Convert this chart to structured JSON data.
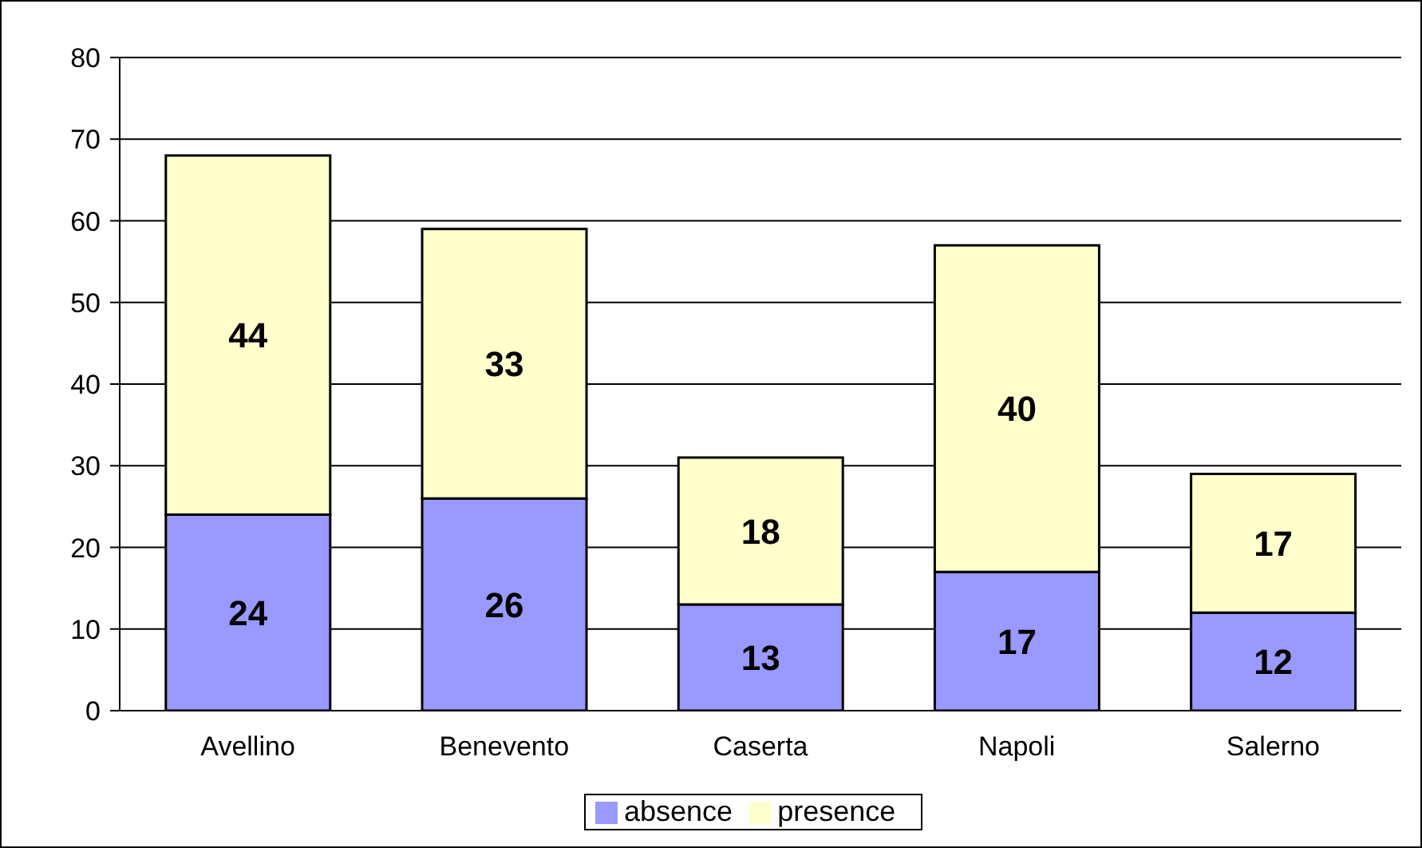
{
  "chart_data": {
    "type": "bar",
    "stacked": true,
    "categories": [
      "Avellino",
      "Benevento",
      "Caserta",
      "Napoli",
      "Salerno"
    ],
    "series": [
      {
        "name": "absence",
        "color": "#9999ff",
        "values": [
          24,
          26,
          13,
          17,
          12
        ]
      },
      {
        "name": "presence",
        "color": "#ffffcc",
        "values": [
          44,
          33,
          18,
          40,
          17
        ]
      }
    ],
    "ylim": [
      0,
      80
    ],
    "yticks": [
      0,
      10,
      20,
      30,
      40,
      50,
      60,
      70,
      80
    ],
    "grid": "y",
    "legend": "bottom",
    "data_labels": true
  }
}
